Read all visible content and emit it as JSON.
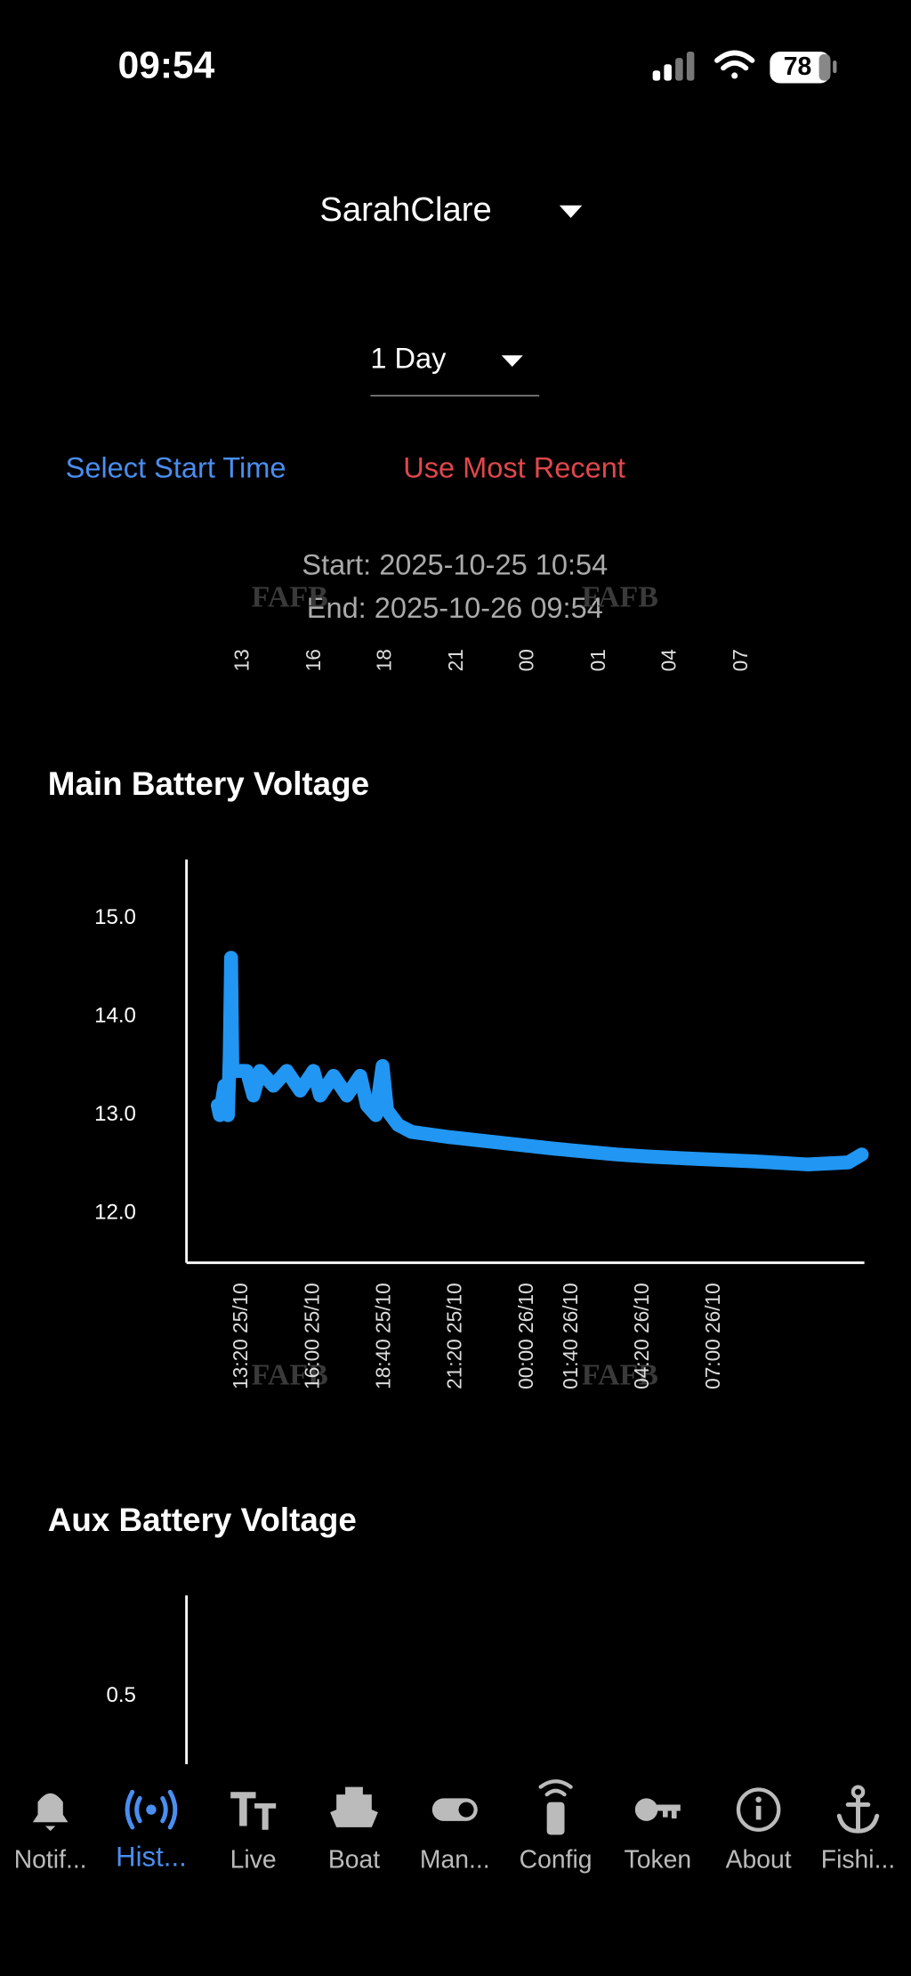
{
  "status_bar": {
    "time": "09:54",
    "battery": "78"
  },
  "boat_selector": {
    "value": "SarahClare"
  },
  "period_selector": {
    "value": "1 Day"
  },
  "actions": {
    "select_start": "Select Start Time",
    "use_most_recent": "Use Most Recent"
  },
  "range": {
    "start": "Start: 2025-10-25 10:54",
    "end": "End: 2025-10-26 09:54"
  },
  "watermarks": [
    "FAFB",
    "FAFB",
    "FAFB",
    "FAFB"
  ],
  "previous_chart_x_labels": [
    "13",
    "16",
    "18",
    "21",
    "00",
    "01",
    "04",
    "07"
  ],
  "charts": [
    {
      "type": "line",
      "title": "Main Battery Voltage",
      "color": "#2196f3",
      "x": [
        "12:25 25/10",
        "12:30 25/10",
        "12:40 25/10",
        "12:48 25/10",
        "12:52 25/10",
        "12:55 25/10",
        "12:58 25/10",
        "13:30 25/10",
        "13:45 25/10",
        "14:00 25/10",
        "14:30 25/10",
        "15:00 25/10",
        "15:30 25/10",
        "16:00 25/10",
        "16:15 25/10",
        "16:45 25/10",
        "17:15 25/10",
        "17:45 25/10",
        "18:00 25/10",
        "18:20 25/10",
        "18:35 25/10",
        "18:45 25/10",
        "19:10 25/10",
        "19:40 25/10",
        "21:00 25/10",
        "23:00 25/10",
        "01:00 26/10",
        "03:20 26/10",
        "04:30 26/10",
        "06:00 26/10",
        "08:30 26/10",
        "10:30 26/10",
        "12:00 26/10",
        "12:30 26/10"
      ],
      "values": [
        13.1,
        13.0,
        13.3,
        13.0,
        13.6,
        14.6,
        13.45,
        13.45,
        13.2,
        13.45,
        13.3,
        13.45,
        13.25,
        13.45,
        13.2,
        13.4,
        13.2,
        13.4,
        13.1,
        13.0,
        13.5,
        13.05,
        12.9,
        12.83,
        12.78,
        12.72,
        12.66,
        12.6,
        12.58,
        12.56,
        12.53,
        12.5,
        12.52,
        12.6
      ],
      "xlim": [
        "11:15 25/10",
        "12:36 26/10"
      ],
      "xticks": [
        "13:20 25/10",
        "16:00 25/10",
        "18:40 25/10",
        "21:20 25/10",
        "00:00 26/10",
        "01:40 26/10",
        "04:20 26/10",
        "07:00 26/10"
      ],
      "ylim": [
        11.5,
        15.6
      ],
      "yticks": [
        {
          "value": 12,
          "label": "12.0"
        },
        {
          "value": 13,
          "label": "13.0"
        },
        {
          "value": 14,
          "label": "14.0"
        },
        {
          "value": 15,
          "label": "15.0"
        }
      ]
    },
    {
      "type": "line",
      "title": "Aux Battery Voltage",
      "ylim": [
        -1,
        1
      ],
      "yticks": [
        0.5
      ]
    }
  ],
  "nav": [
    "Notif...",
    "Hist...",
    "Live",
    "Boat",
    "Man...",
    "Config",
    "Token",
    "About",
    "Fishi..."
  ],
  "active_nav": 1
}
